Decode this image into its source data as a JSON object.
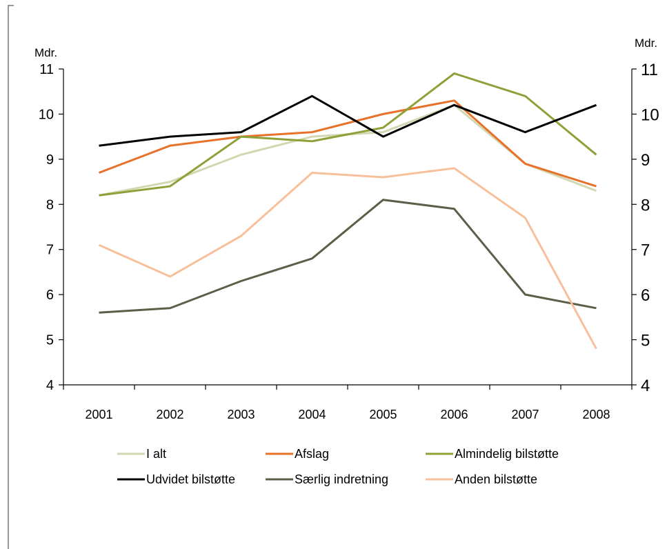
{
  "chart_data": {
    "type": "line",
    "x": [
      "2001",
      "2002",
      "2003",
      "2004",
      "2005",
      "2006",
      "2007",
      "2008"
    ],
    "yaxis_left": {
      "unit": "Mdr.",
      "ticks": [
        "4",
        "5",
        "6",
        "7",
        "8",
        "9",
        "10",
        "11"
      ]
    },
    "yaxis_right": {
      "unit": "Mdr.",
      "ticks": [
        "4",
        "5",
        "6",
        "7",
        "8",
        "9",
        "10",
        "11"
      ]
    },
    "ylim": [
      4,
      11
    ],
    "grid": false,
    "legend_position": "bottom",
    "series": [
      {
        "name": "I alt",
        "color": "#d3d7b0",
        "values": [
          8.2,
          8.5,
          9.1,
          9.5,
          9.6,
          10.2,
          8.9,
          8.3
        ]
      },
      {
        "name": "Afslag",
        "color": "#e8712a",
        "values": [
          8.7,
          9.3,
          9.5,
          9.6,
          10.0,
          10.3,
          8.9,
          8.4
        ]
      },
      {
        "name": "Almindelig bilstøtte",
        "color": "#8ca238",
        "values": [
          8.2,
          8.4,
          9.5,
          9.4,
          9.7,
          10.9,
          10.4,
          9.1
        ]
      },
      {
        "name": "Udvidet bilstøtte",
        "color": "#000000",
        "values": [
          9.3,
          9.5,
          9.6,
          10.4,
          9.5,
          10.2,
          9.6,
          10.2
        ]
      },
      {
        "name": "Særlig indretning",
        "color": "#5c5e48",
        "values": [
          5.6,
          5.7,
          6.3,
          6.8,
          8.1,
          7.9,
          6.0,
          5.7
        ]
      },
      {
        "name": "Anden bilstøtte",
        "color": "#f8bf9b",
        "values": [
          7.1,
          6.4,
          7.3,
          8.7,
          8.6,
          8.8,
          7.7,
          4.8
        ]
      }
    ]
  }
}
